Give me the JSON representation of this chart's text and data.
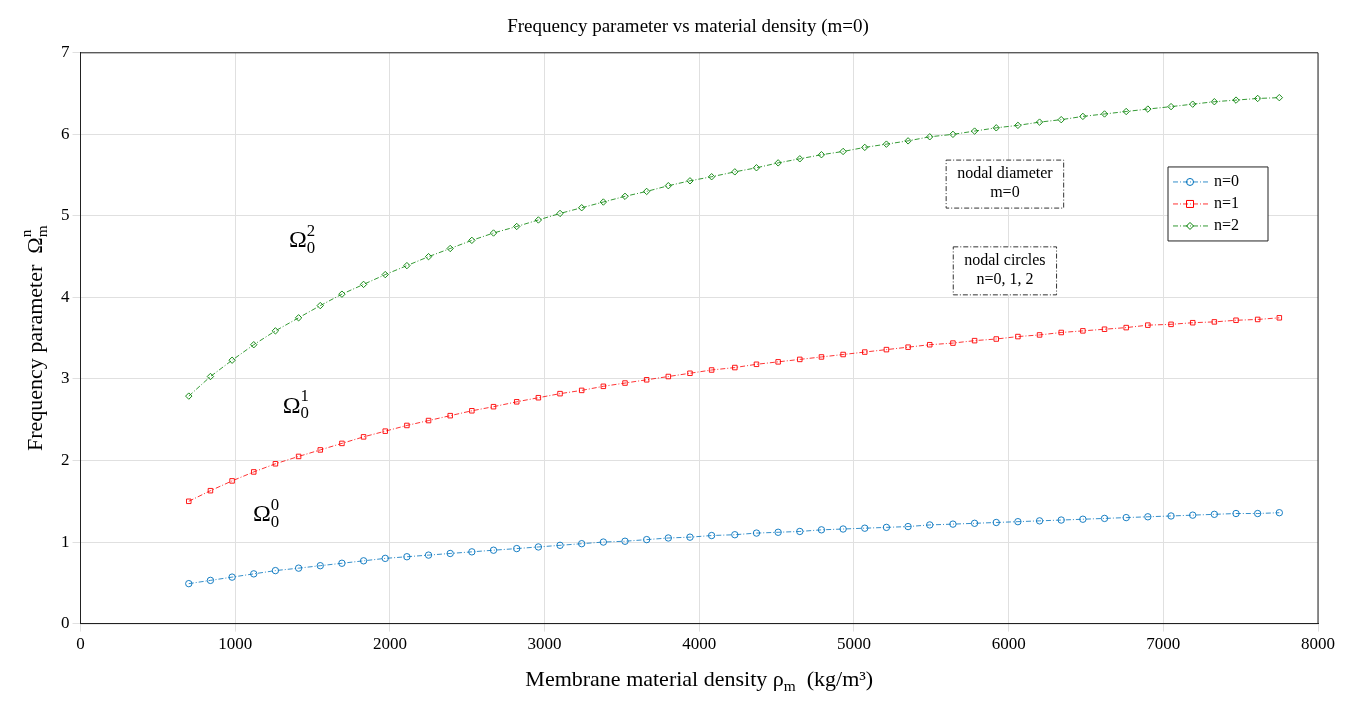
{
  "chart_data": {
    "type": "line",
    "title": "Frequency parameter vs material density (m=0)",
    "xlabel": "Membrane material density ρ$_{m}$  (kg/m³)",
    "ylabel": "Frequency parameter  Ω$_{m}$$^{n}$",
    "x": [
      700,
      840,
      980,
      1120,
      1260,
      1410,
      1550,
      1690,
      1830,
      1970,
      2110,
      2250,
      2390,
      2530,
      2670,
      2820,
      2960,
      3100,
      3240,
      3380,
      3520,
      3660,
      3800,
      3940,
      4080,
      4230,
      4370,
      4510,
      4650,
      4790,
      4930,
      5070,
      5210,
      5350,
      5490,
      5640,
      5780,
      5920,
      6060,
      6200,
      6340,
      6480,
      6620,
      6760,
      6900,
      7050,
      7190,
      7330,
      7470,
      7610,
      7750
    ],
    "series": [
      {
        "name": "n=0",
        "color": "#0072bd",
        "marker": "circle",
        "values": [
          0.49,
          0.53,
          0.57,
          0.61,
          0.65,
          0.68,
          0.71,
          0.74,
          0.77,
          0.8,
          0.82,
          0.84,
          0.86,
          0.88,
          0.9,
          0.92,
          0.94,
          0.96,
          0.98,
          1.0,
          1.01,
          1.03,
          1.05,
          1.06,
          1.08,
          1.09,
          1.11,
          1.12,
          1.13,
          1.15,
          1.16,
          1.17,
          1.18,
          1.19,
          1.21,
          1.22,
          1.23,
          1.24,
          1.25,
          1.26,
          1.27,
          1.28,
          1.29,
          1.3,
          1.31,
          1.32,
          1.33,
          1.34,
          1.35,
          1.35,
          1.36
        ]
      },
      {
        "name": "n=1",
        "color": "#ff0000",
        "marker": "square",
        "values": [
          1.5,
          1.63,
          1.75,
          1.86,
          1.96,
          2.05,
          2.13,
          2.21,
          2.29,
          2.36,
          2.43,
          2.49,
          2.55,
          2.61,
          2.66,
          2.72,
          2.77,
          2.82,
          2.86,
          2.91,
          2.95,
          2.99,
          3.03,
          3.07,
          3.11,
          3.14,
          3.18,
          3.21,
          3.24,
          3.27,
          3.3,
          3.33,
          3.36,
          3.39,
          3.42,
          3.44,
          3.47,
          3.49,
          3.52,
          3.54,
          3.57,
          3.59,
          3.61,
          3.63,
          3.66,
          3.67,
          3.69,
          3.7,
          3.72,
          3.73,
          3.75
        ]
      },
      {
        "name": "n=2",
        "color": "#008000",
        "marker": "diamond",
        "values": [
          2.79,
          3.03,
          3.23,
          3.42,
          3.59,
          3.75,
          3.9,
          4.04,
          4.16,
          4.28,
          4.39,
          4.5,
          4.6,
          4.7,
          4.79,
          4.87,
          4.95,
          5.03,
          5.1,
          5.17,
          5.24,
          5.3,
          5.37,
          5.43,
          5.48,
          5.54,
          5.59,
          5.65,
          5.7,
          5.75,
          5.79,
          5.84,
          5.88,
          5.92,
          5.97,
          6.0,
          6.04,
          6.08,
          6.11,
          6.15,
          6.18,
          6.22,
          6.25,
          6.28,
          6.31,
          6.34,
          6.37,
          6.4,
          6.42,
          6.44,
          6.45
        ]
      }
    ],
    "annotations": [
      "Ω$_{0}$$^{2}$",
      "Ω$_{0}$$^{1}$",
      "Ω$_{0}$$^{0}$",
      "nodal diameter\nm=0",
      "nodal circles\nn=0, 1, 2"
    ],
    "xlim": [
      0,
      8000
    ],
    "xticks": [
      0,
      1000,
      2000,
      3000,
      4000,
      5000,
      6000,
      7000,
      8000
    ],
    "ylim": [
      0,
      7
    ],
    "yticks": [
      0,
      1,
      2,
      3,
      4,
      5,
      6,
      7
    ],
    "grid": true,
    "legend": "top right",
    "line_style": "dashed"
  }
}
